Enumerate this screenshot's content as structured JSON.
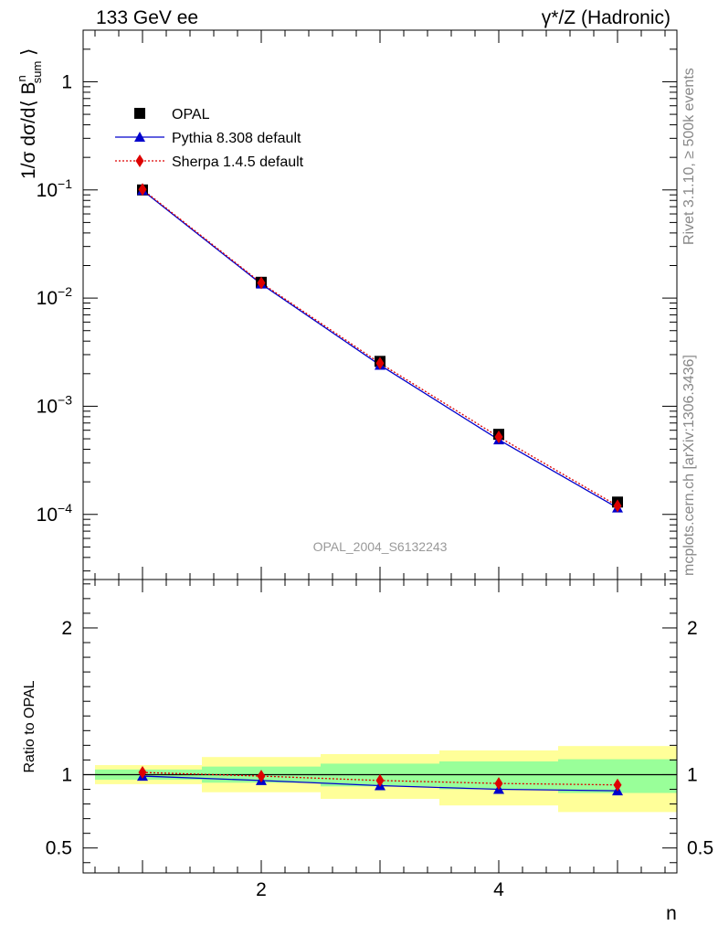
{
  "header": {
    "energy_label": "133 GeV ee",
    "process_label": "γ*/Z (Hadronic)"
  },
  "side_labels": {
    "rivet": "Rivet 3.1.10, ≥ 500k events",
    "mcplots": "mcplots.cern.ch [arXiv:1306.3436]"
  },
  "colors": {
    "data": "#000000",
    "pythia": "#0000cc",
    "sherpa": "#dd0000",
    "band_inner": "#99ff99",
    "band_outer": "#ffff99",
    "watermark": "#999999"
  },
  "chart_data": [
    {
      "type": "scatter",
      "panel": "main",
      "title": "",
      "watermark": "OPAL_2004_S6132243",
      "ylabel": "1/σ dσ/d⟨ B^n_sum ⟩",
      "ylabel_parts": {
        "prefix": "1/σ dσ/d⟨ B",
        "sup": "n",
        "sub": "sum",
        "suffix": " ⟩"
      },
      "yscale": "log",
      "xlim": [
        0.5,
        5.5
      ],
      "ylim": [
        2.5e-05,
        3
      ],
      "yticks": [
        {
          "value": 1,
          "mantissa": "1",
          "exp": ""
        },
        {
          "value": 0.1,
          "mantissa": "10",
          "exp": "−1"
        },
        {
          "value": 0.01,
          "mantissa": "10",
          "exp": "−2"
        },
        {
          "value": 0.001,
          "mantissa": "10",
          "exp": "−3"
        },
        {
          "value": 0.0001,
          "mantissa": "10",
          "exp": "−4"
        }
      ],
      "legend_position": "top-left",
      "x": [
        1,
        2,
        3,
        4,
        5
      ],
      "series": [
        {
          "name": "OPAL",
          "marker": "square",
          "values": [
            0.1,
            0.014,
            0.0026,
            0.00055,
            0.00013
          ]
        },
        {
          "name": "Pythia 8.308 default",
          "marker": "triangle",
          "line": "solid",
          "values": [
            0.099,
            0.0135,
            0.0024,
            0.00049,
            0.000115
          ]
        },
        {
          "name": "Sherpa 1.4.5 default",
          "marker": "diamond",
          "line": "dotted",
          "values": [
            0.101,
            0.0138,
            0.0025,
            0.00052,
            0.00012
          ]
        }
      ]
    },
    {
      "type": "line",
      "panel": "ratio",
      "ylabel": "Ratio to OPAL",
      "xlabel": "n",
      "xlim": [
        0.5,
        5.5
      ],
      "ylim": [
        0.33,
        2.33
      ],
      "yticks": [
        {
          "value": 0.5,
          "label": "0.5"
        },
        {
          "value": 1,
          "label": "1"
        },
        {
          "value": 2,
          "label": "2"
        }
      ],
      "xticks": [
        {
          "value": 2,
          "label": "2"
        },
        {
          "value": 4,
          "label": "4"
        }
      ],
      "bands": [
        {
          "x0": 0.6,
          "x1": 1.5,
          "outer": [
            0.935,
            1.065
          ],
          "inner": [
            0.965,
            1.035
          ]
        },
        {
          "x0": 1.5,
          "x1": 2.5,
          "outer": [
            0.88,
            1.12
          ],
          "inner": [
            0.945,
            1.055
          ]
        },
        {
          "x0": 2.5,
          "x1": 3.5,
          "outer": [
            0.835,
            1.14
          ],
          "inner": [
            0.92,
            1.075
          ]
        },
        {
          "x0": 3.5,
          "x1": 4.5,
          "outer": [
            0.79,
            1.165
          ],
          "inner": [
            0.9,
            1.09
          ]
        },
        {
          "x0": 4.5,
          "x1": 5.5,
          "outer": [
            0.745,
            1.195
          ],
          "inner": [
            0.875,
            1.105
          ]
        }
      ],
      "x": [
        1,
        2,
        3,
        4,
        5
      ],
      "series": [
        {
          "name": "Pythia 8.308 default",
          "marker": "triangle",
          "line": "solid",
          "values": [
            0.99,
            0.96,
            0.925,
            0.9,
            0.89
          ]
        },
        {
          "name": "Sherpa 1.4.5 default",
          "marker": "diamond",
          "line": "dotted",
          "values": [
            1.015,
            0.99,
            0.96,
            0.94,
            0.93
          ]
        }
      ]
    }
  ]
}
